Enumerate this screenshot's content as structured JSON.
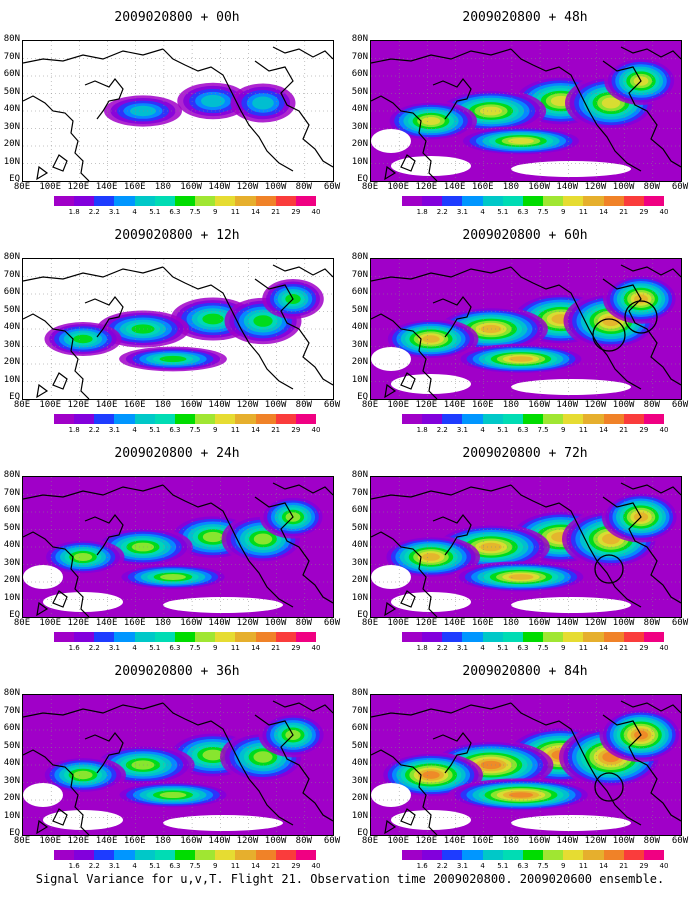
{
  "panels": [
    {
      "title": "2009020800 + 00h",
      "intensity": 0.25,
      "circles": []
    },
    {
      "title": "2009020800 + 48h",
      "intensity": 0.7,
      "circles": []
    },
    {
      "title": "2009020800 + 12h",
      "intensity": 0.45,
      "circles": []
    },
    {
      "title": "2009020800 + 60h",
      "intensity": 0.75,
      "circles": [
        "east-pacific",
        "gulf"
      ]
    },
    {
      "title": "2009020800 + 24h",
      "intensity": 0.55,
      "circles": []
    },
    {
      "title": "2009020800 + 72h",
      "intensity": 0.8,
      "circles": [
        "gulf-small"
      ]
    },
    {
      "title": "2009020800 + 36h",
      "intensity": 0.6,
      "circles": []
    },
    {
      "title": "2009020800 + 84h",
      "intensity": 0.9,
      "circles": [
        "gulf-small"
      ]
    }
  ],
  "lat_labels": [
    "80N",
    "70N",
    "60N",
    "50N",
    "40N",
    "30N",
    "20N",
    "10N",
    "EQ"
  ],
  "lon_labels": [
    "80E",
    "100E",
    "120E",
    "140E",
    "160E",
    "180",
    "160W",
    "140W",
    "120W",
    "100W",
    "80W",
    "60W"
  ],
  "colorbar_labels": [
    "1.8",
    "2.2",
    "3.1",
    "4",
    "5.1",
    "6.3",
    "7.5",
    "9",
    "11",
    "14",
    "21",
    "29",
    "40"
  ],
  "colorbar_labels_alt": [
    "1.6",
    "2.2",
    "3.1",
    "4",
    "5.1",
    "6.3",
    "7.5",
    "9",
    "11",
    "14",
    "21",
    "29",
    "40"
  ],
  "colorbar_colors": [
    "#a000c8",
    "#8200dc",
    "#1e3cff",
    "#0096ff",
    "#00c8c8",
    "#00dcb4",
    "#00dc00",
    "#a0e632",
    "#e6dc32",
    "#e6af2d",
    "#f08228",
    "#fa3c3c",
    "#f00082"
  ],
  "caption": "Signal Variance for u,v,T. Flight 21. Observation time 2009020800. 2009020600 ensemble."
}
